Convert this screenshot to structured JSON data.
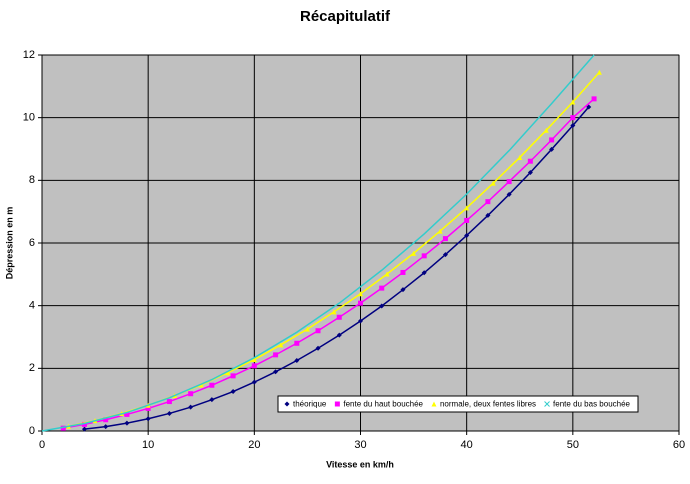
{
  "chart_data": {
    "type": "line",
    "title": "Récapitulatif",
    "x_label": "Vitesse en km/h",
    "y_label": "Dépression en m",
    "xlim": [
      0,
      60
    ],
    "xticks": [
      0,
      10,
      20,
      30,
      40,
      50,
      60
    ],
    "ylim": [
      0,
      12
    ],
    "yticks": [
      0,
      2,
      4,
      6,
      8,
      10,
      12
    ],
    "grid": true,
    "legend": "lower right",
    "series": [
      {
        "name": "théorique",
        "color": "#000080",
        "marker": "diamond",
        "x": [
          4,
          6,
          8,
          10,
          12,
          14,
          16,
          18,
          20,
          22,
          24,
          26,
          28,
          30,
          32,
          34,
          36,
          38,
          40,
          42,
          44,
          46,
          48,
          50,
          51.5
        ],
        "values": [
          0.06,
          0.14,
          0.25,
          0.39,
          0.56,
          0.76,
          1.0,
          1.26,
          1.56,
          1.89,
          2.25,
          2.64,
          3.06,
          3.51,
          3.99,
          4.51,
          5.05,
          5.63,
          6.24,
          6.88,
          7.55,
          8.25,
          8.99,
          9.75,
          10.34
        ]
      },
      {
        "name": "fente du haut bouchée",
        "color": "#ff00ff",
        "marker": "square",
        "x": [
          2,
          4,
          6,
          8,
          10,
          12,
          14,
          16,
          18,
          20,
          22,
          24,
          26,
          28,
          30,
          32,
          34,
          36,
          38,
          40,
          42,
          44,
          46,
          48,
          50,
          52
        ],
        "values": [
          0.09,
          0.21,
          0.36,
          0.53,
          0.72,
          0.94,
          1.19,
          1.46,
          1.76,
          2.08,
          2.43,
          2.8,
          3.2,
          3.63,
          4.08,
          4.56,
          5.06,
          5.59,
          6.14,
          6.72,
          7.32,
          7.96,
          8.61,
          9.29,
          10.0,
          10.6
        ]
      },
      {
        "name": "normale, deux fentes libres",
        "color": "#ffff00",
        "marker": "triangle",
        "x": [
          2.5,
          5,
          7.5,
          10,
          12.5,
          15,
          17.5,
          20,
          22.5,
          25,
          27.5,
          30,
          32.5,
          35,
          37.5,
          40,
          42.5,
          45,
          47.5,
          50,
          52.5
        ],
        "values": [
          0.15,
          0.33,
          0.56,
          0.82,
          1.13,
          1.47,
          1.86,
          2.28,
          2.75,
          3.25,
          3.8,
          4.38,
          5.01,
          5.67,
          6.38,
          7.12,
          7.91,
          8.73,
          9.6,
          10.5,
          11.45
        ]
      },
      {
        "name": "fente du bas bouchée",
        "color": "#33cccc",
        "marker": "cross",
        "x": [
          0,
          4,
          8,
          12,
          16,
          20,
          24,
          28,
          32,
          36,
          40,
          44,
          48,
          52
        ],
        "values": [
          0,
          0.24,
          0.59,
          1.06,
          1.64,
          2.34,
          3.15,
          4.08,
          5.13,
          6.29,
          7.56,
          8.95,
          10.45,
          12.0
        ]
      }
    ]
  }
}
